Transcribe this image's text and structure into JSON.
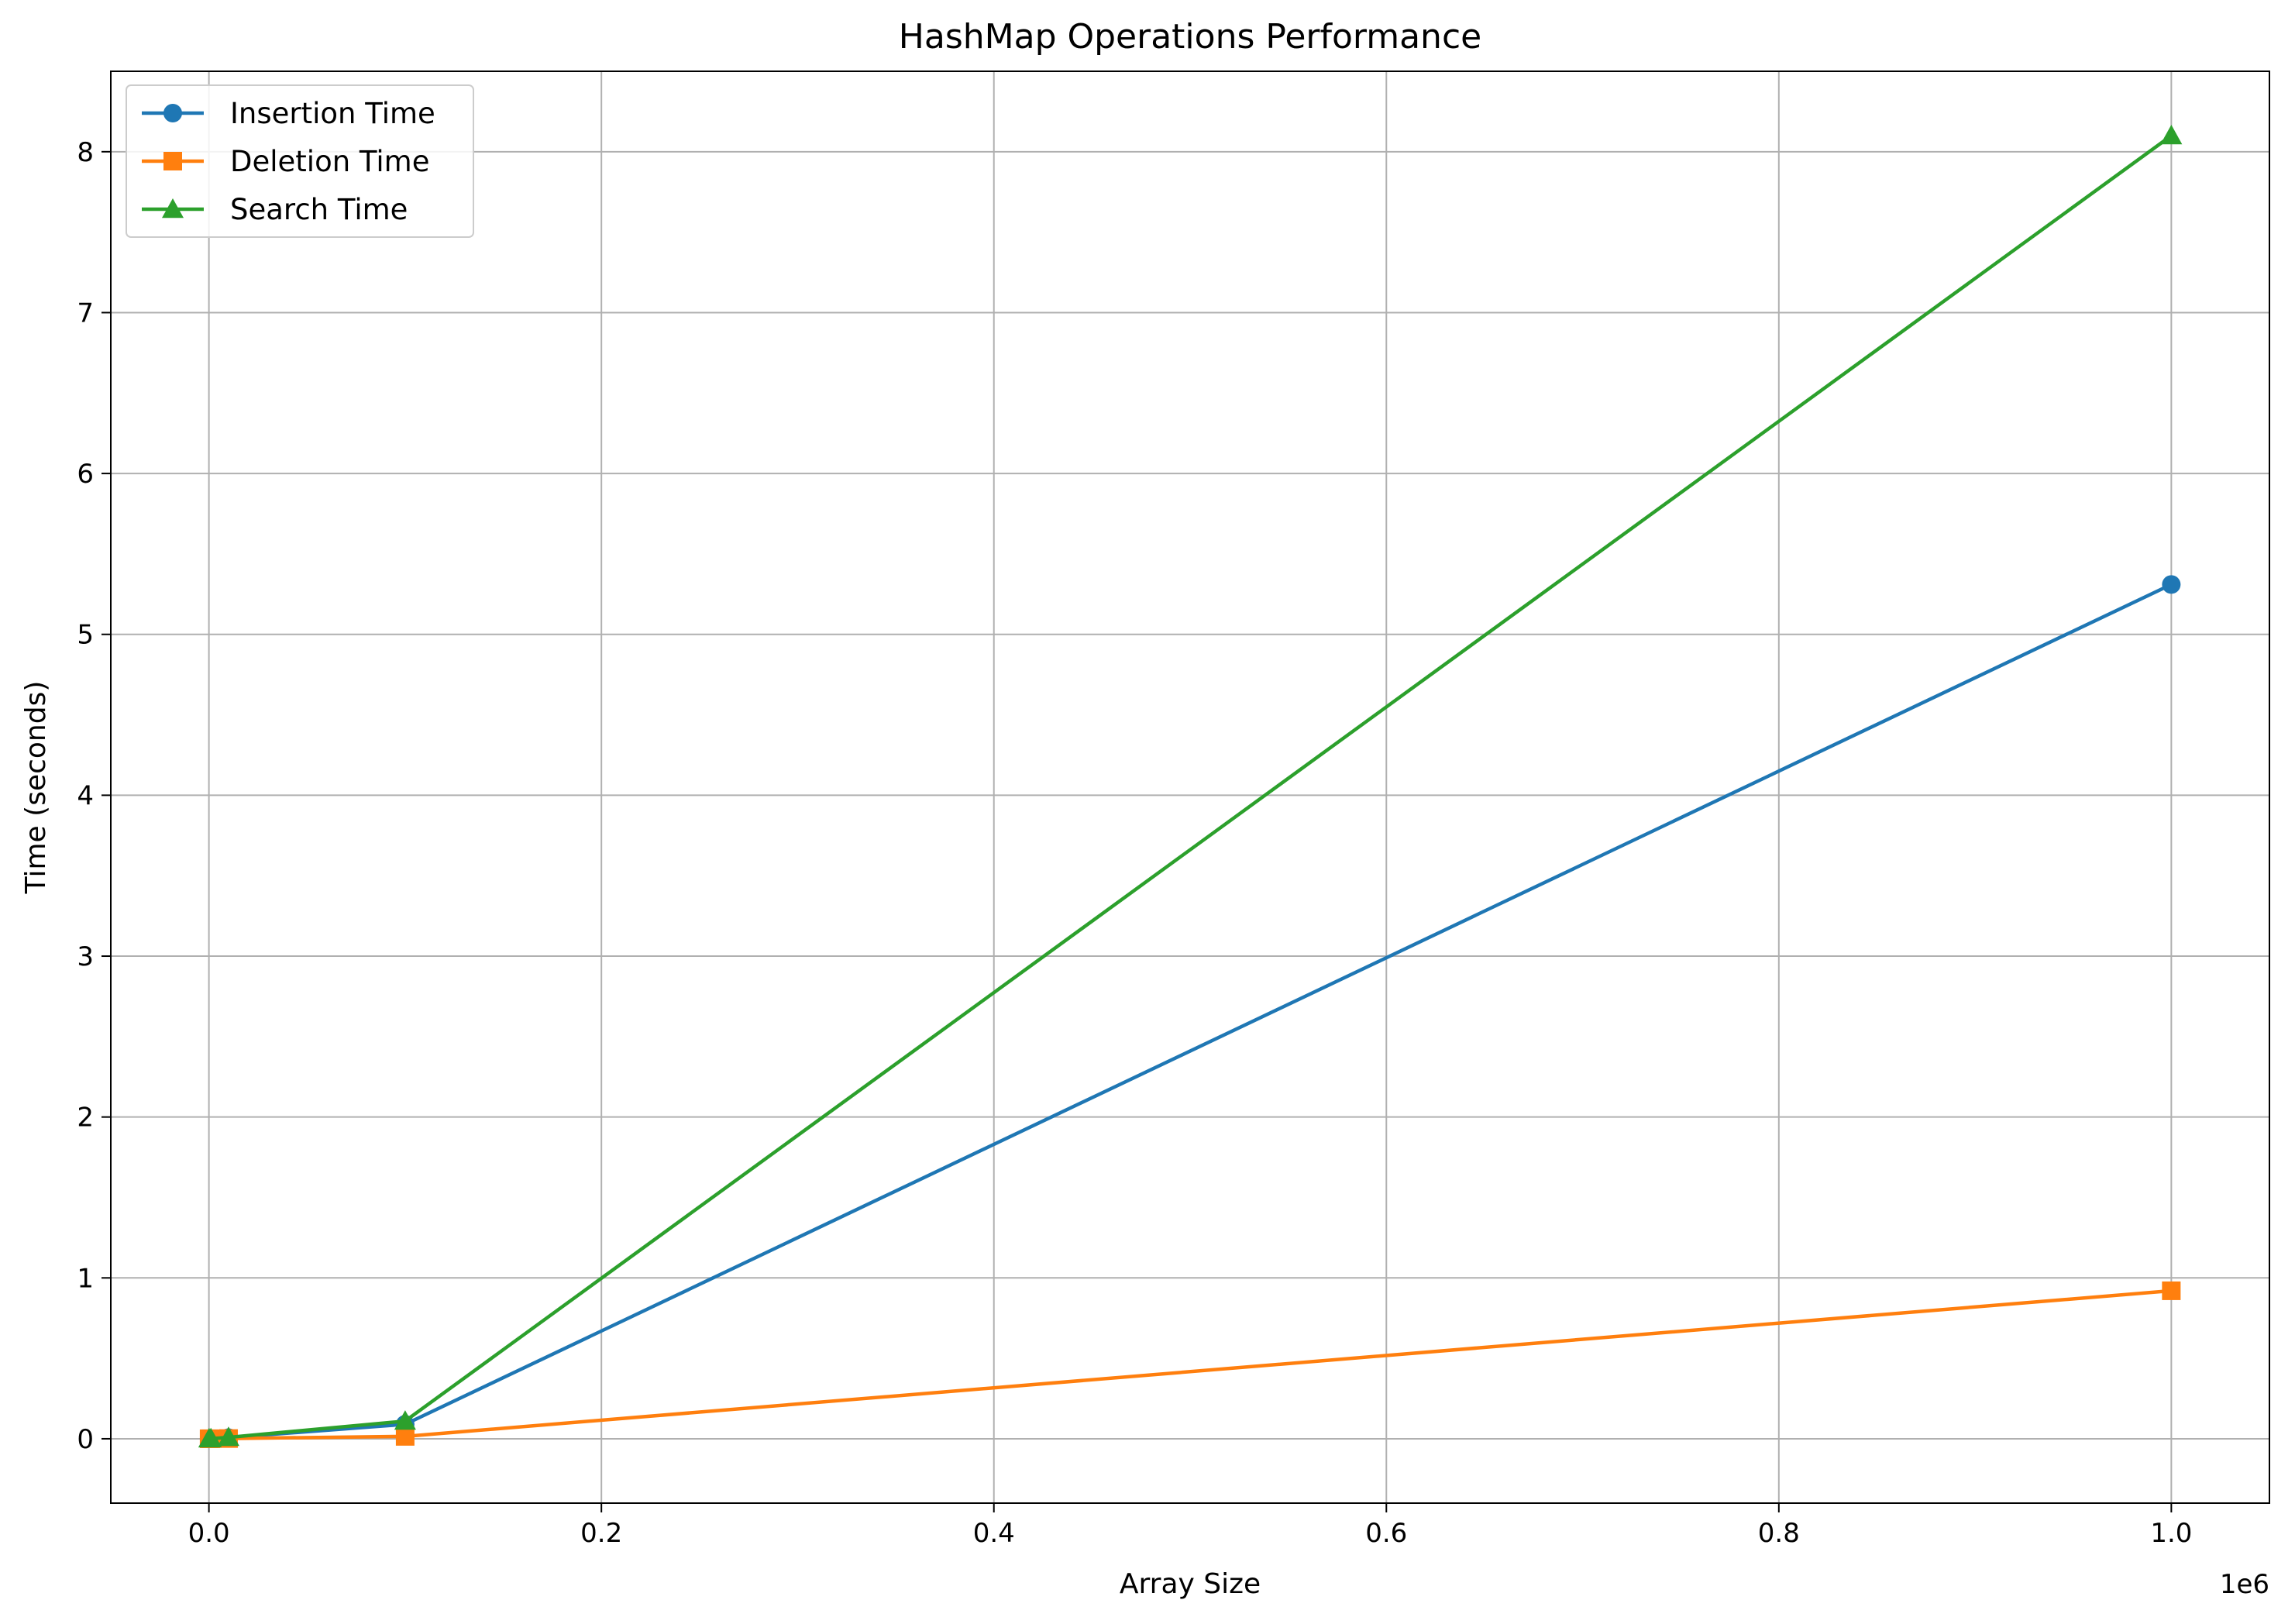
{
  "chart_data": {
    "type": "line",
    "title": "HashMap Operations Performance",
    "xlabel": "Array Size",
    "ylabel": "Time (seconds)",
    "x_offset_label": "1e6",
    "xlim": [
      -50000,
      1050000
    ],
    "ylim": [
      -0.4,
      8.5
    ],
    "xticks": [
      0,
      200000,
      400000,
      600000,
      800000,
      1000000
    ],
    "xtick_labels": [
      "0.0",
      "0.2",
      "0.4",
      "0.6",
      "0.8",
      "1.0"
    ],
    "yticks": [
      0,
      1,
      2,
      3,
      4,
      5,
      6,
      7,
      8
    ],
    "ytick_labels": [
      "0",
      "1",
      "2",
      "3",
      "4",
      "5",
      "6",
      "7",
      "8"
    ],
    "grid": true,
    "legend_position": "top-left",
    "x": [
      100,
      1000,
      10000,
      100000,
      1000000
    ],
    "series": [
      {
        "name": "Insertion Time",
        "marker": "circle",
        "color": "#1f77b4",
        "values": [
          0.0001,
          0.0008,
          0.007,
          0.09,
          5.31
        ]
      },
      {
        "name": "Deletion Time",
        "marker": "square",
        "color": "#ff7f0e",
        "values": [
          2e-05,
          0.0002,
          0.0015,
          0.015,
          0.92
        ]
      },
      {
        "name": "Search Time",
        "marker": "triangle",
        "color": "#2ca02c",
        "values": [
          0.0001,
          0.001,
          0.009,
          0.11,
          8.1
        ]
      }
    ]
  }
}
